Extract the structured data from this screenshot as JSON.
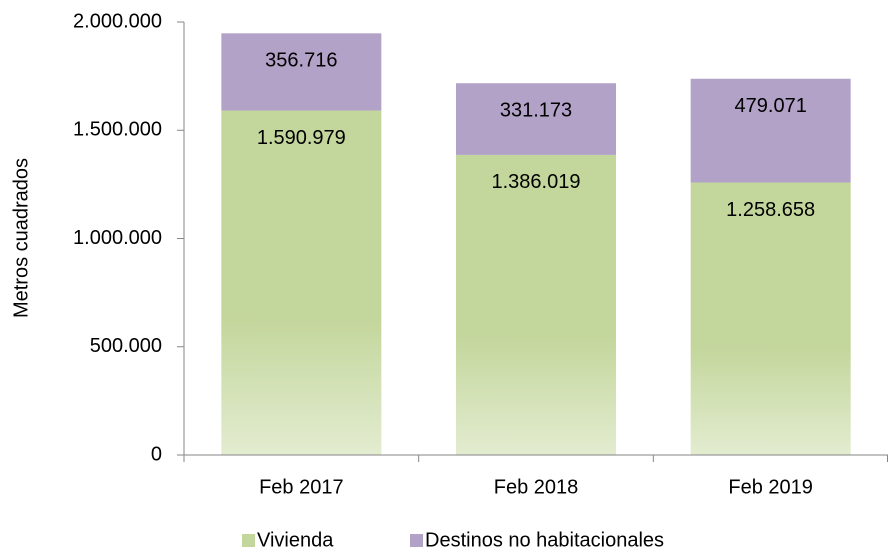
{
  "chart_data": {
    "type": "stacked_bar",
    "y_label": "Metros cuadrados",
    "categories": [
      "Feb 2017",
      "Feb 2018",
      "Feb 2019"
    ],
    "series": [
      {
        "name": "Vivienda",
        "color": "#c3d69b",
        "values": [
          1590979,
          1386019,
          1258658
        ],
        "value_labels": [
          "1.590.979",
          "1.386.019",
          "1.258.658"
        ]
      },
      {
        "name": "Destinos no habitacionales",
        "color": "#b3a2c7",
        "values": [
          356716,
          331173,
          479071
        ],
        "value_labels": [
          "356.716",
          "331.173",
          "479.071"
        ]
      }
    ],
    "ylim": [
      0,
      2000000
    ],
    "yticks": [
      0,
      {
        "value": 500000,
        "label": "500.000"
      },
      {
        "value": 1000000,
        "label": "1.000.000"
      },
      {
        "value": 1500000,
        "label": "1.500.000"
      },
      {
        "value": 2000000,
        "label": "2.000.000"
      }
    ],
    "legend": "bottom"
  }
}
